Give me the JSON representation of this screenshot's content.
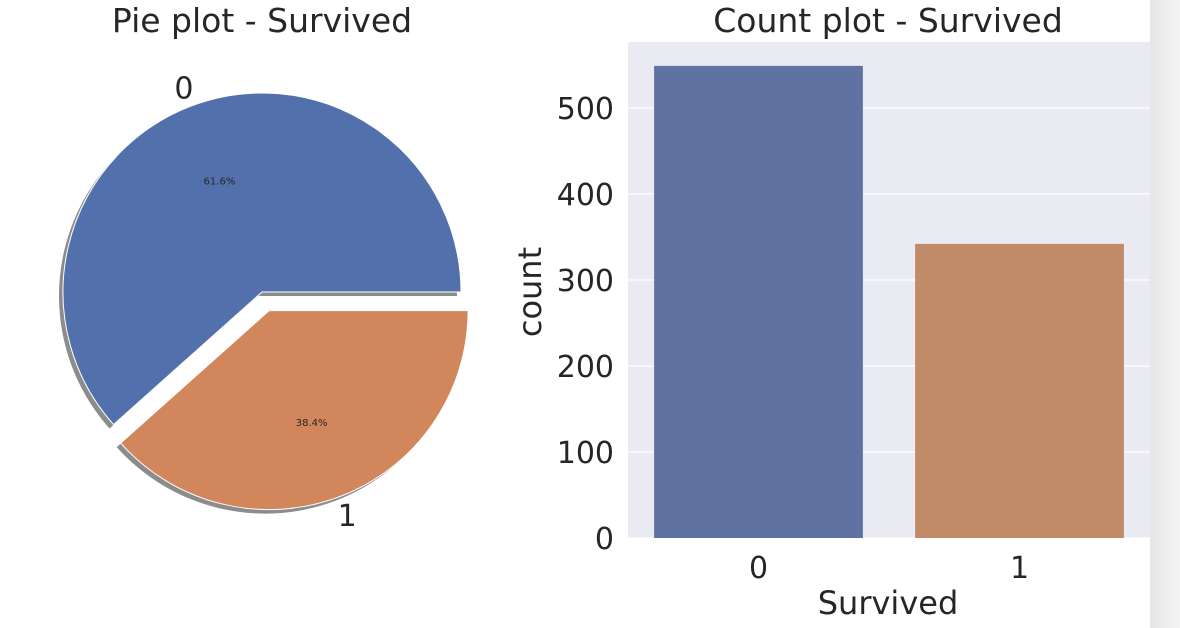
{
  "chart_data": [
    {
      "type": "pie",
      "title": "Pie plot - Survived",
      "labels": [
        "0",
        "1"
      ],
      "values": [
        61.6,
        38.4
      ],
      "value_labels": [
        "61.6%",
        "38.4%"
      ],
      "explode": [
        0,
        0.1
      ],
      "shadow": true,
      "colors": [
        "#5270ab",
        "#d1865b"
      ]
    },
    {
      "type": "bar",
      "title": "Count plot - Survived",
      "categories": [
        "0",
        "1"
      ],
      "values": [
        549,
        342
      ],
      "xlabel": "Survived",
      "ylabel": "count",
      "ylim": [
        0,
        550
      ],
      "yticks": [
        "0",
        "100",
        "200",
        "300",
        "400",
        "500"
      ],
      "grid": true,
      "colors": [
        "#5f72a1",
        "#c18b68"
      ],
      "background": "#eaeaf2"
    }
  ]
}
